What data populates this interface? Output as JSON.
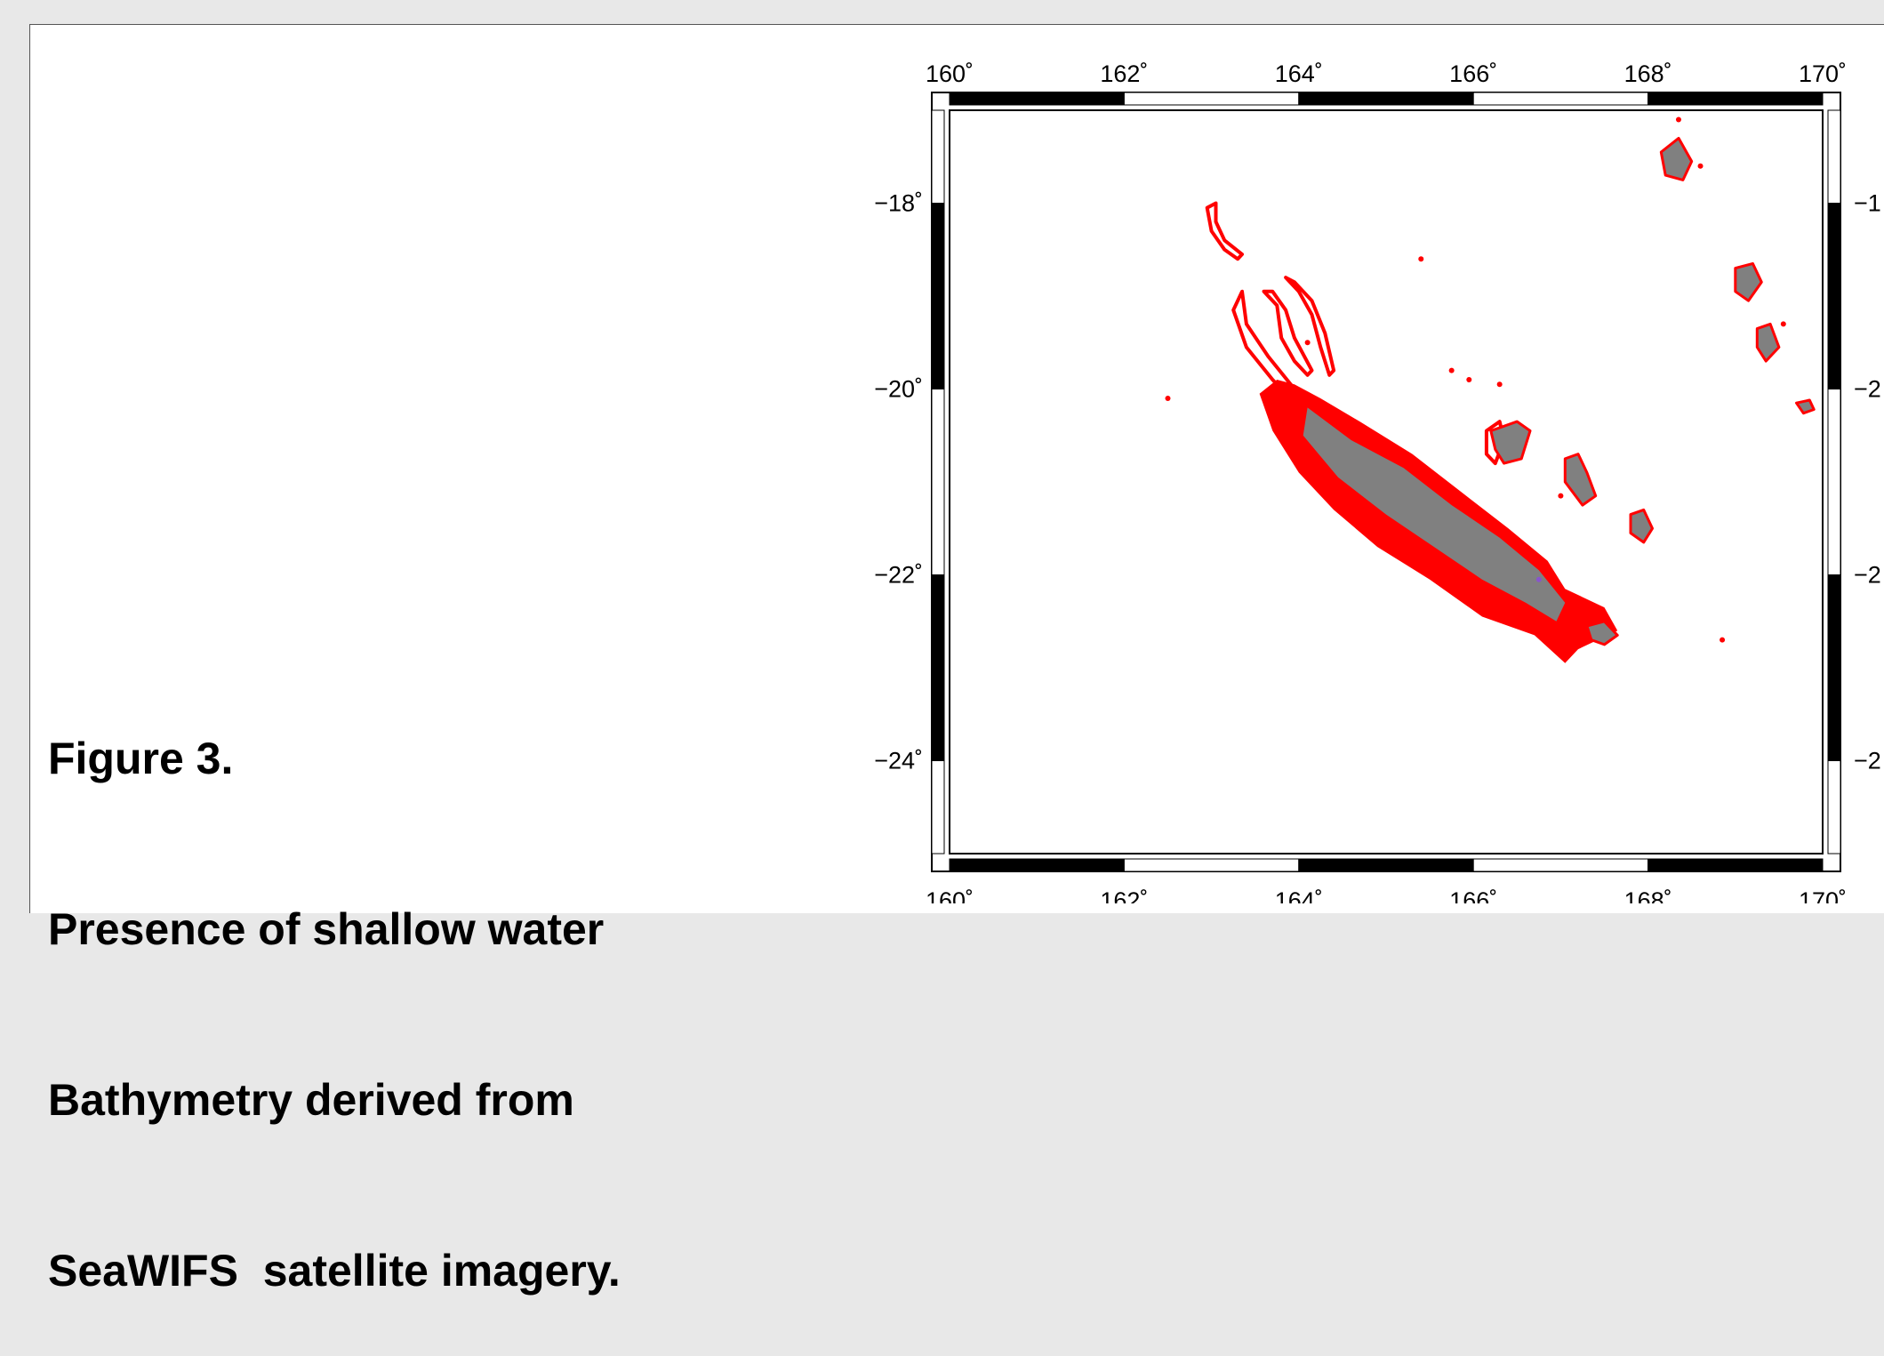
{
  "caption": {
    "figure_label": "Figure 3.",
    "line1": "Presence of shallow water",
    "line2": "Bathymetry derived from",
    "line3": "SeaWIFS  satellite imagery."
  },
  "map": {
    "projection": "plate carrée (lon/lat)",
    "lon_range": [
      160,
      170
    ],
    "lat_range": [
      -25,
      -17
    ],
    "frame_style": "alternating black/white fancy frame",
    "lon_ticks": [
      {
        "value": 160,
        "label": "160˚"
      },
      {
        "value": 162,
        "label": "162˚"
      },
      {
        "value": 164,
        "label": "164˚"
      },
      {
        "value": 166,
        "label": "166˚"
      },
      {
        "value": 168,
        "label": "168˚"
      },
      {
        "value": 170,
        "label": "170˚"
      }
    ],
    "lat_ticks_left": [
      {
        "value": -18,
        "label": "−18˚"
      },
      {
        "value": -20,
        "label": "−20˚"
      },
      {
        "value": -22,
        "label": "−22˚"
      },
      {
        "value": -24,
        "label": "−24˚"
      }
    ],
    "lat_ticks_right": [
      {
        "value": -18,
        "label": "−1"
      },
      {
        "value": -20,
        "label": "−2"
      },
      {
        "value": -22,
        "label": "−2"
      },
      {
        "value": -24,
        "label": "−2"
      }
    ],
    "colors": {
      "land": "#808080",
      "shallow_water": "#ff0000",
      "other": "#8855cc",
      "frame": "#000000",
      "background": "#ffffff"
    },
    "features": {
      "grande_terre": {
        "land": [
          [
            164.1,
            -20.2
          ],
          [
            164.6,
            -20.55
          ],
          [
            165.2,
            -20.85
          ],
          [
            165.75,
            -21.25
          ],
          [
            166.3,
            -21.6
          ],
          [
            166.75,
            -21.95
          ],
          [
            167.05,
            -22.3
          ],
          [
            166.95,
            -22.5
          ],
          [
            166.6,
            -22.3
          ],
          [
            166.1,
            -22.05
          ],
          [
            165.55,
            -21.7
          ],
          [
            165.0,
            -21.35
          ],
          [
            164.45,
            -20.95
          ],
          [
            164.05,
            -20.5
          ]
        ],
        "lagoon": [
          [
            163.75,
            -19.9
          ],
          [
            163.95,
            -19.95
          ],
          [
            164.25,
            -20.1
          ],
          [
            164.7,
            -20.35
          ],
          [
            165.3,
            -20.7
          ],
          [
            165.85,
            -21.1
          ],
          [
            166.4,
            -21.5
          ],
          [
            166.85,
            -21.85
          ],
          [
            167.05,
            -22.15
          ],
          [
            167.5,
            -22.35
          ],
          [
            167.65,
            -22.6
          ],
          [
            167.2,
            -22.8
          ],
          [
            167.05,
            -22.95
          ],
          [
            166.7,
            -22.65
          ],
          [
            166.1,
            -22.45
          ],
          [
            165.5,
            -22.05
          ],
          [
            164.9,
            -21.7
          ],
          [
            164.4,
            -21.3
          ],
          [
            164.0,
            -20.9
          ],
          [
            163.7,
            -20.45
          ],
          [
            163.55,
            -20.05
          ]
        ]
      },
      "north_reef": [
        [
          162.95,
          -18.05
        ],
        [
          163.0,
          -18.3
        ],
        [
          163.15,
          -18.5
        ],
        [
          163.3,
          -18.6
        ],
        [
          163.35,
          -18.55
        ],
        [
          163.15,
          -18.4
        ],
        [
          163.05,
          -18.2
        ],
        [
          163.05,
          -18.0
        ]
      ],
      "reef_arc_a": [
        [
          163.35,
          -18.95
        ],
        [
          163.25,
          -19.15
        ],
        [
          163.4,
          -19.55
        ],
        [
          163.7,
          -19.9
        ],
        [
          163.85,
          -20.05
        ],
        [
          163.95,
          -20.0
        ],
        [
          163.65,
          -19.65
        ],
        [
          163.4,
          -19.3
        ]
      ],
      "reef_arc_b": [
        [
          163.6,
          -18.95
        ],
        [
          163.75,
          -19.1
        ],
        [
          163.8,
          -19.45
        ],
        [
          163.95,
          -19.7
        ],
        [
          164.1,
          -19.85
        ],
        [
          164.15,
          -19.8
        ],
        [
          163.95,
          -19.45
        ],
        [
          163.85,
          -19.15
        ],
        [
          163.7,
          -18.95
        ]
      ],
      "reef_arc_c": [
        [
          163.85,
          -18.8
        ],
        [
          164.0,
          -18.95
        ],
        [
          164.15,
          -19.2
        ],
        [
          164.25,
          -19.55
        ],
        [
          164.35,
          -19.85
        ],
        [
          164.4,
          -19.8
        ],
        [
          164.3,
          -19.4
        ],
        [
          164.15,
          -19.05
        ],
        [
          163.95,
          -18.85
        ]
      ],
      "loyalty_ouvea": [
        [
          166.2,
          -20.45
        ],
        [
          166.5,
          -20.35
        ],
        [
          166.65,
          -20.45
        ],
        [
          166.55,
          -20.75
        ],
        [
          166.35,
          -20.8
        ],
        [
          166.25,
          -20.65
        ]
      ],
      "loyalty_lifou": [
        [
          167.05,
          -20.75
        ],
        [
          167.2,
          -20.7
        ],
        [
          167.3,
          -20.9
        ],
        [
          167.4,
          -21.15
        ],
        [
          167.25,
          -21.25
        ],
        [
          167.05,
          -21.0
        ]
      ],
      "loyalty_mare": [
        [
          167.8,
          -21.35
        ],
        [
          167.95,
          -21.3
        ],
        [
          168.05,
          -21.5
        ],
        [
          167.95,
          -21.65
        ],
        [
          167.8,
          -21.55
        ]
      ],
      "vanuatu_espiritu": [
        [
          168.15,
          -17.45
        ],
        [
          168.35,
          -17.3
        ],
        [
          168.5,
          -17.55
        ],
        [
          168.4,
          -17.75
        ],
        [
          168.2,
          -17.7
        ]
      ],
      "vanuatu_erromango": [
        [
          169.0,
          -18.7
        ],
        [
          169.2,
          -18.65
        ],
        [
          169.3,
          -18.85
        ],
        [
          169.15,
          -19.05
        ],
        [
          169.0,
          -18.95
        ]
      ],
      "vanuatu_tanna": [
        [
          169.25,
          -19.35
        ],
        [
          169.4,
          -19.3
        ],
        [
          169.5,
          -19.55
        ],
        [
          169.35,
          -19.7
        ],
        [
          169.25,
          -19.55
        ]
      ],
      "vanuatu_aneityum": [
        [
          169.7,
          -20.15
        ],
        [
          169.85,
          -20.12
        ],
        [
          169.9,
          -20.22
        ],
        [
          169.78,
          -20.26
        ]
      ],
      "isle_of_pines": [
        [
          167.3,
          -22.55
        ],
        [
          167.5,
          -22.5
        ],
        [
          167.65,
          -22.65
        ],
        [
          167.5,
          -22.75
        ],
        [
          167.35,
          -22.7
        ]
      ],
      "loyalty_ouvea_reef": [
        [
          166.15,
          -20.45
        ],
        [
          166.3,
          -20.35
        ],
        [
          166.35,
          -20.55
        ],
        [
          166.25,
          -20.8
        ],
        [
          166.15,
          -20.7
        ]
      ],
      "small_islets": [
        {
          "lon": 162.5,
          "lat": -20.1
        },
        {
          "lon": 164.1,
          "lat": -19.5
        },
        {
          "lon": 165.4,
          "lat": -18.6
        },
        {
          "lon": 165.95,
          "lat": -19.9
        },
        {
          "lon": 166.3,
          "lat": -19.95
        },
        {
          "lon": 165.75,
          "lat": -19.8
        },
        {
          "lon": 167.0,
          "lat": -21.15
        },
        {
          "lon": 168.6,
          "lat": -17.6
        },
        {
          "lon": 168.35,
          "lat": -17.1
        },
        {
          "lon": 169.55,
          "lat": -19.3
        },
        {
          "lon": 168.85,
          "lat": -22.7
        }
      ]
    }
  }
}
